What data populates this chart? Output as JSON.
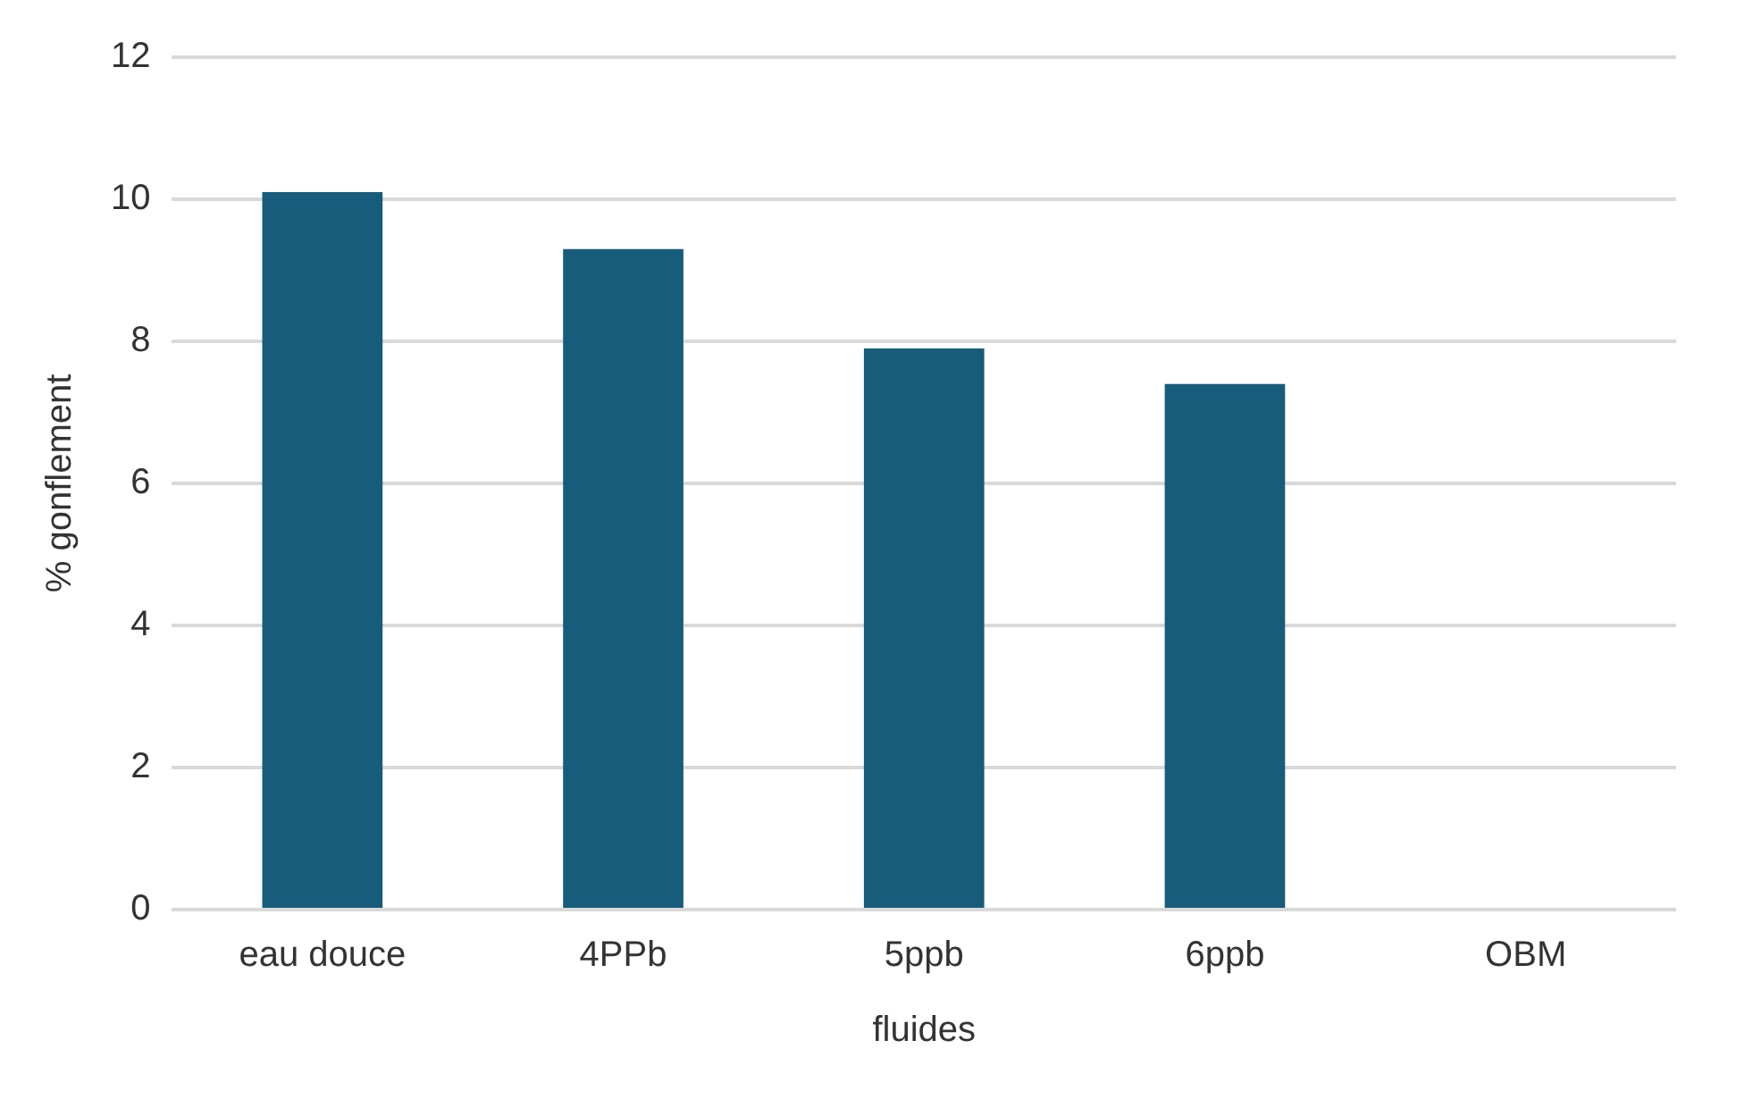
{
  "chart_data": {
    "type": "bar",
    "xlabel": "fluides",
    "ylabel": "% gonflement",
    "categories": [
      "eau douce",
      "4PPb",
      "5ppb",
      "6ppb",
      "OBM"
    ],
    "values": [
      10.1,
      9.3,
      7.9,
      7.4,
      0
    ],
    "color": "#175c7a",
    "ylim": [
      0,
      12
    ],
    "yticks": [
      0,
      2,
      4,
      6,
      8,
      10,
      12
    ],
    "grid": "y",
    "legend": false
  }
}
